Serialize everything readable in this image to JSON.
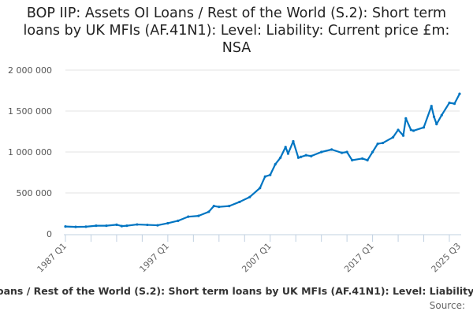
{
  "chart_data": {
    "type": "line",
    "title": "BOP IIP: Assets OI Loans / Rest of the World (S.2): Short term loans by UK MFIs (AF.41N1): Level: Liability: Current price £m: NSA",
    "footer_title_visible": "oans / Rest of the World (S.2): Short term loans by UK MFIs (AF.41N1): Level: Liability:",
    "source_label": "Source:",
    "xlabel": "",
    "ylabel": "",
    "xlim": [
      1987.0,
      2025.5
    ],
    "ylim": [
      0,
      2000000
    ],
    "yticks": [
      {
        "v": 0,
        "label": "0"
      },
      {
        "v": 500000,
        "label": "500 000"
      },
      {
        "v": 1000000,
        "label": "1 000 000"
      },
      {
        "v": 1500000,
        "label": "1 500 000"
      },
      {
        "v": 2000000,
        "label": "2 000 000"
      }
    ],
    "xticks": [
      {
        "v": 1987.0,
        "label": "1987 Q1"
      },
      {
        "v": 1997.0,
        "label": "1997 Q1"
      },
      {
        "v": 2007.0,
        "label": "2007 Q1"
      },
      {
        "v": 2017.0,
        "label": "2017 Q1"
      },
      {
        "v": 2025.5,
        "label": "2025 Q3"
      }
    ],
    "grid": true,
    "color": "#0075c2",
    "series": [
      {
        "name": "BOP IIP Short term loans by UK MFIs",
        "x": [
          1987,
          1988,
          1989,
          1990,
          1991,
          1992,
          1992.5,
          1993,
          1994,
          1995,
          1996,
          1997,
          1998,
          1999,
          2000,
          2001,
          2001.5,
          2002,
          2003,
          2004,
          2005,
          2006,
          2006.5,
          2007,
          2007.5,
          2008,
          2008.5,
          2008.75,
          2009.25,
          2009.75,
          2010,
          2010.5,
          2011,
          2012,
          2013,
          2014,
          2014.5,
          2015,
          2016,
          2016.5,
          2017,
          2017.5,
          2018,
          2019,
          2019.5,
          2020,
          2020.25,
          2020.75,
          2021,
          2022,
          2022.75,
          2023,
          2023.25,
          2023.75,
          2024.5,
          2025,
          2025.5
        ],
        "y": [
          90000,
          85000,
          88000,
          100000,
          100000,
          112000,
          95000,
          100000,
          115000,
          110000,
          105000,
          130000,
          160000,
          210000,
          220000,
          270000,
          340000,
          330000,
          340000,
          390000,
          450000,
          560000,
          700000,
          720000,
          850000,
          930000,
          1060000,
          980000,
          1130000,
          930000,
          940000,
          960000,
          950000,
          1000000,
          1030000,
          990000,
          1000000,
          900000,
          920000,
          900000,
          1000000,
          1100000,
          1110000,
          1180000,
          1270000,
          1200000,
          1410000,
          1270000,
          1260000,
          1300000,
          1560000,
          1430000,
          1340000,
          1450000,
          1600000,
          1590000,
          1710000
        ]
      }
    ]
  }
}
